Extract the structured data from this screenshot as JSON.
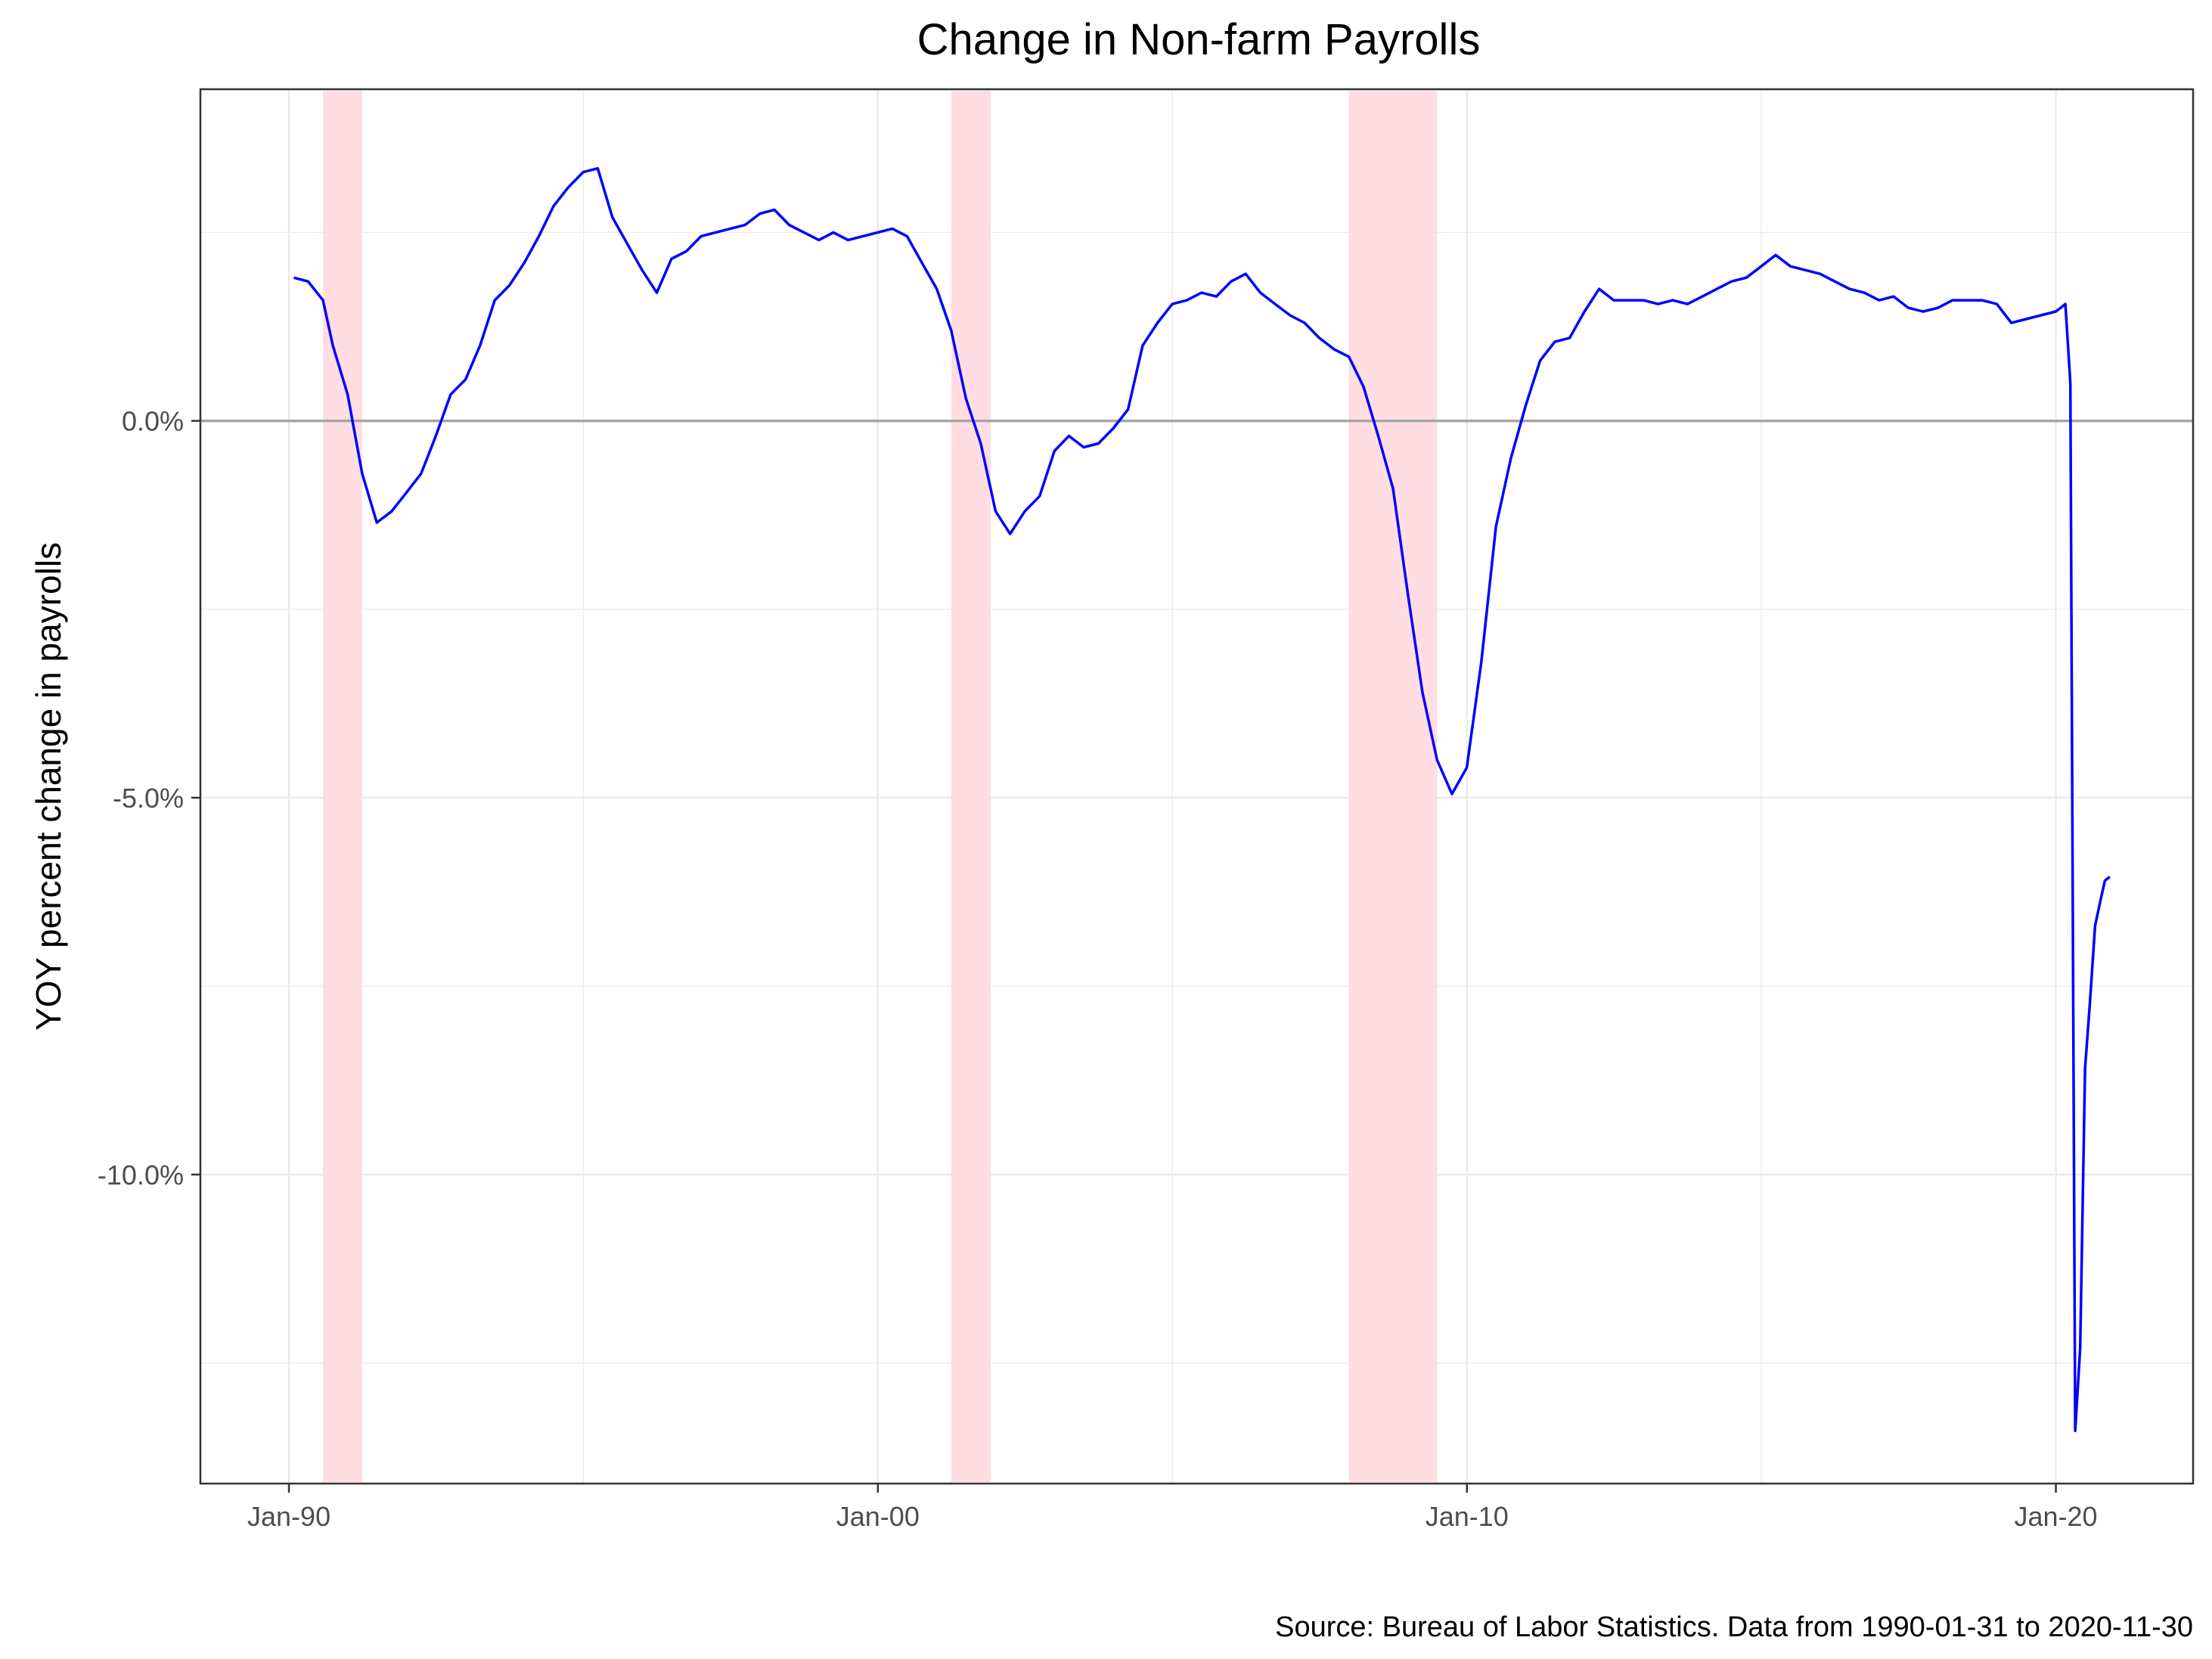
{
  "chart_data": {
    "type": "line",
    "title": "Change in Non-farm Payrolls",
    "xlabel": "",
    "ylabel": "YOY percent change in payrolls",
    "caption": "Source: Bureau of Labor Statistics. Data from 1990-01-31 to 2020-11-30",
    "y_unit": "%",
    "ylim": [
      -14.1,
      4.4
    ],
    "xlim": [
      "1988-07-01",
      "2022-05-01"
    ],
    "x_ticks": [
      {
        "date": "1990-01-01",
        "label": "Jan-90"
      },
      {
        "date": "2000-01-01",
        "label": "Jan-00"
      },
      {
        "date": "2010-01-01",
        "label": "Jan-10"
      },
      {
        "date": "2020-01-01",
        "label": "Jan-20"
      }
    ],
    "y_ticks": [
      {
        "value": 0,
        "label": "0.0%"
      },
      {
        "value": -5,
        "label": "-5.0%"
      },
      {
        "value": -10,
        "label": "-10.0%"
      }
    ],
    "grid": true,
    "zero_line": true,
    "colors": {
      "line": "#0000ff",
      "recession": "#ffdde3",
      "zero_line": "#a6a6a6",
      "grid": "#ebebeb",
      "panel_border": "#333333",
      "text": "#000000",
      "tick_text": "#4d4d4d"
    },
    "recessions": [
      {
        "start": "1990-07-31",
        "end": "1991-03-31"
      },
      {
        "start": "2001-03-31",
        "end": "2001-11-30"
      },
      {
        "start": "2007-12-31",
        "end": "2009-06-30"
      }
    ],
    "series": [
      {
        "points": [
          [
            "1990-01-31",
            1.9
          ],
          [
            "1990-04-30",
            1.85
          ],
          [
            "1990-07-31",
            1.6
          ],
          [
            "1990-09-30",
            1.0
          ],
          [
            "1990-12-31",
            0.35
          ],
          [
            "1991-03-31",
            -0.7
          ],
          [
            "1991-06-30",
            -1.35
          ],
          [
            "1991-09-30",
            -1.2
          ],
          [
            "1991-12-31",
            -0.95
          ],
          [
            "1992-03-31",
            -0.7
          ],
          [
            "1992-06-30",
            -0.2
          ],
          [
            "1992-09-30",
            0.35
          ],
          [
            "1992-12-31",
            0.55
          ],
          [
            "1993-03-31",
            1.0
          ],
          [
            "1993-06-30",
            1.6
          ],
          [
            "1993-09-30",
            1.8
          ],
          [
            "1993-12-31",
            2.1
          ],
          [
            "1994-03-31",
            2.45
          ],
          [
            "1994-06-30",
            2.85
          ],
          [
            "1994-09-30",
            3.1
          ],
          [
            "1994-12-31",
            3.3
          ],
          [
            "1995-03-31",
            3.35
          ],
          [
            "1995-06-30",
            2.7
          ],
          [
            "1995-09-30",
            2.35
          ],
          [
            "1995-12-31",
            2.0
          ],
          [
            "1996-03-31",
            1.7
          ],
          [
            "1996-06-30",
            2.15
          ],
          [
            "1996-09-30",
            2.25
          ],
          [
            "1996-12-31",
            2.45
          ],
          [
            "1997-03-31",
            2.5
          ],
          [
            "1997-06-30",
            2.55
          ],
          [
            "1997-09-30",
            2.6
          ],
          [
            "1997-12-31",
            2.75
          ],
          [
            "1998-03-31",
            2.8
          ],
          [
            "1998-06-30",
            2.6
          ],
          [
            "1998-09-30",
            2.5
          ],
          [
            "1998-12-31",
            2.4
          ],
          [
            "1999-03-31",
            2.5
          ],
          [
            "1999-06-30",
            2.4
          ],
          [
            "1999-09-30",
            2.45
          ],
          [
            "1999-12-31",
            2.5
          ],
          [
            "2000-03-31",
            2.55
          ],
          [
            "2000-06-30",
            2.45
          ],
          [
            "2000-09-30",
            2.1
          ],
          [
            "2000-12-31",
            1.75
          ],
          [
            "2001-03-31",
            1.2
          ],
          [
            "2001-06-30",
            0.3
          ],
          [
            "2001-09-30",
            -0.3
          ],
          [
            "2001-12-31",
            -1.2
          ],
          [
            "2002-03-31",
            -1.5
          ],
          [
            "2002-06-30",
            -1.2
          ],
          [
            "2002-09-30",
            -1.0
          ],
          [
            "2002-12-31",
            -0.4
          ],
          [
            "2003-03-31",
            -0.2
          ],
          [
            "2003-06-30",
            -0.35
          ],
          [
            "2003-09-30",
            -0.3
          ],
          [
            "2003-12-31",
            -0.1
          ],
          [
            "2004-03-31",
            0.15
          ],
          [
            "2004-06-30",
            1.0
          ],
          [
            "2004-09-30",
            1.3
          ],
          [
            "2004-12-31",
            1.55
          ],
          [
            "2005-03-31",
            1.6
          ],
          [
            "2005-06-30",
            1.7
          ],
          [
            "2005-09-30",
            1.65
          ],
          [
            "2005-12-31",
            1.85
          ],
          [
            "2006-03-31",
            1.95
          ],
          [
            "2006-06-30",
            1.7
          ],
          [
            "2006-09-30",
            1.55
          ],
          [
            "2006-12-31",
            1.4
          ],
          [
            "2007-03-31",
            1.3
          ],
          [
            "2007-06-30",
            1.1
          ],
          [
            "2007-09-30",
            0.95
          ],
          [
            "2007-12-31",
            0.85
          ],
          [
            "2008-03-31",
            0.45
          ],
          [
            "2008-06-30",
            -0.2
          ],
          [
            "2008-09-30",
            -0.9
          ],
          [
            "2008-12-31",
            -2.3
          ],
          [
            "2009-03-31",
            -3.6
          ],
          [
            "2009-06-30",
            -4.5
          ],
          [
            "2009-09-30",
            -4.95
          ],
          [
            "2009-12-31",
            -4.6
          ],
          [
            "2010-03-31",
            -3.2
          ],
          [
            "2010-06-30",
            -1.4
          ],
          [
            "2010-09-30",
            -0.5
          ],
          [
            "2010-12-31",
            0.2
          ],
          [
            "2011-03-31",
            0.8
          ],
          [
            "2011-06-30",
            1.05
          ],
          [
            "2011-09-30",
            1.1
          ],
          [
            "2011-12-31",
            1.45
          ],
          [
            "2012-03-31",
            1.75
          ],
          [
            "2012-06-30",
            1.6
          ],
          [
            "2012-09-30",
            1.6
          ],
          [
            "2012-12-31",
            1.6
          ],
          [
            "2013-03-31",
            1.55
          ],
          [
            "2013-06-30",
            1.6
          ],
          [
            "2013-09-30",
            1.55
          ],
          [
            "2013-12-31",
            1.65
          ],
          [
            "2014-03-31",
            1.75
          ],
          [
            "2014-06-30",
            1.85
          ],
          [
            "2014-09-30",
            1.9
          ],
          [
            "2014-12-31",
            2.05
          ],
          [
            "2015-03-31",
            2.2
          ],
          [
            "2015-06-30",
            2.05
          ],
          [
            "2015-09-30",
            2.0
          ],
          [
            "2015-12-31",
            1.95
          ],
          [
            "2016-03-31",
            1.85
          ],
          [
            "2016-06-30",
            1.75
          ],
          [
            "2016-09-30",
            1.7
          ],
          [
            "2016-12-31",
            1.6
          ],
          [
            "2017-03-31",
            1.65
          ],
          [
            "2017-06-30",
            1.5
          ],
          [
            "2017-09-30",
            1.45
          ],
          [
            "2017-12-31",
            1.5
          ],
          [
            "2018-03-31",
            1.6
          ],
          [
            "2018-06-30",
            1.6
          ],
          [
            "2018-09-30",
            1.6
          ],
          [
            "2018-12-31",
            1.55
          ],
          [
            "2019-03-31",
            1.3
          ],
          [
            "2019-06-30",
            1.35
          ],
          [
            "2019-09-30",
            1.4
          ],
          [
            "2019-12-31",
            1.45
          ],
          [
            "2020-01-31",
            1.5
          ],
          [
            "2020-02-29",
            1.55
          ],
          [
            "2020-03-31",
            0.5
          ],
          [
            "2020-04-30",
            -13.4
          ],
          [
            "2020-05-31",
            -12.3
          ],
          [
            "2020-06-30",
            -8.6
          ],
          [
            "2020-07-31",
            -7.7
          ],
          [
            "2020-08-31",
            -6.7
          ],
          [
            "2020-09-30",
            -6.4
          ],
          [
            "2020-10-31",
            -6.1
          ],
          [
            "2020-11-30",
            -6.05
          ]
        ]
      }
    ]
  }
}
